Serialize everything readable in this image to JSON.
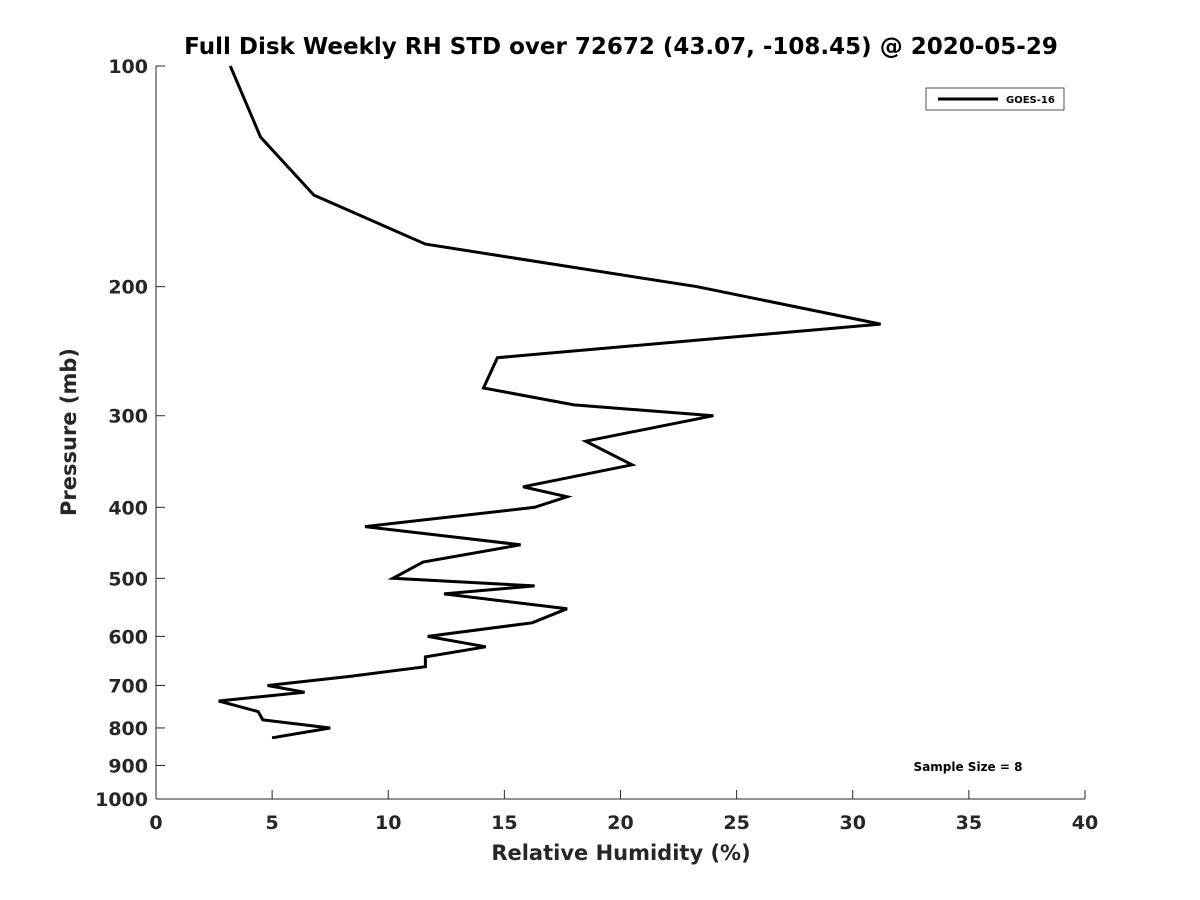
{
  "chart_data": {
    "type": "line",
    "title": "Full Disk Weekly RH STD over 72672 (43.07, -108.45) @ 2020-05-29",
    "xlabel": "Relative Humidity (%)",
    "ylabel": "Pressure (mb)",
    "xlim": [
      0,
      40
    ],
    "ylim": [
      100,
      1000
    ],
    "y_scale": "log",
    "y_reversed": true,
    "grid": false,
    "xticks": [
      0,
      5,
      10,
      15,
      20,
      25,
      30,
      35,
      40
    ],
    "yticks": [
      100,
      200,
      300,
      400,
      500,
      600,
      700,
      800,
      900,
      1000
    ],
    "legend": {
      "placement": "top-right",
      "entries": [
        "GOES-16"
      ]
    },
    "annotations": [
      "Sample Size = 8"
    ],
    "series": [
      {
        "name": "GOES-16",
        "color": "#000000",
        "points": [
          {
            "x": 3.2,
            "y": 100
          },
          {
            "x": 4.5,
            "y": 125
          },
          {
            "x": 6.8,
            "y": 150
          },
          {
            "x": 11.6,
            "y": 175
          },
          {
            "x": 23.3,
            "y": 200
          },
          {
            "x": 31.2,
            "y": 225
          },
          {
            "x": 14.7,
            "y": 250
          },
          {
            "x": 14.1,
            "y": 275
          },
          {
            "x": 18.0,
            "y": 290
          },
          {
            "x": 24.0,
            "y": 300
          },
          {
            "x": 18.5,
            "y": 325
          },
          {
            "x": 20.5,
            "y": 350
          },
          {
            "x": 15.8,
            "y": 375
          },
          {
            "x": 17.7,
            "y": 387
          },
          {
            "x": 16.3,
            "y": 400
          },
          {
            "x": 9.0,
            "y": 425
          },
          {
            "x": 15.7,
            "y": 450
          },
          {
            "x": 11.5,
            "y": 475
          },
          {
            "x": 10.2,
            "y": 500
          },
          {
            "x": 16.3,
            "y": 512
          },
          {
            "x": 12.4,
            "y": 525
          },
          {
            "x": 17.7,
            "y": 550
          },
          {
            "x": 16.2,
            "y": 575
          },
          {
            "x": 11.7,
            "y": 600
          },
          {
            "x": 14.2,
            "y": 620
          },
          {
            "x": 11.6,
            "y": 640
          },
          {
            "x": 11.6,
            "y": 660
          },
          {
            "x": 8.4,
            "y": 680
          },
          {
            "x": 4.8,
            "y": 700
          },
          {
            "x": 6.4,
            "y": 715
          },
          {
            "x": 2.7,
            "y": 735
          },
          {
            "x": 4.4,
            "y": 760
          },
          {
            "x": 4.6,
            "y": 780
          },
          {
            "x": 7.5,
            "y": 800
          },
          {
            "x": 5.0,
            "y": 825
          }
        ]
      }
    ]
  }
}
